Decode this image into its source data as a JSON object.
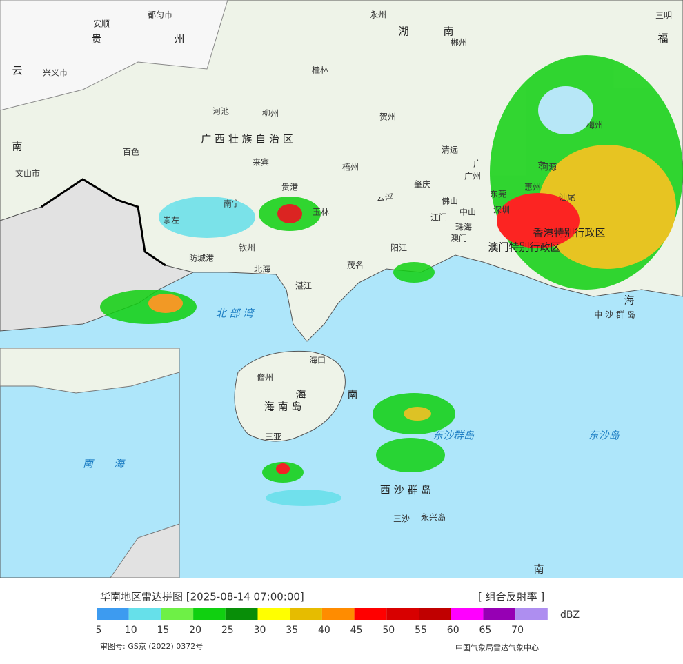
{
  "header": {
    "title": "华南地区雷达拼图 [2025-08-14 07:00:00]",
    "product": "[ 组合反射率 ]"
  },
  "legend": {
    "unit": "dBZ",
    "colors": [
      "#3d9bf0",
      "#66e0ea",
      "#6ef046",
      "#10d010",
      "#088e08",
      "#ffff00",
      "#e6bc00",
      "#ff8c00",
      "#ff0000",
      "#d80000",
      "#c00000",
      "#ff00ff",
      "#9600b4",
      "#ae8ef0"
    ],
    "ticks": [
      5,
      10,
      15,
      20,
      25,
      30,
      35,
      40,
      45,
      50,
      55,
      60,
      65,
      70
    ]
  },
  "map": {
    "labels": [
      "贵",
      "州",
      "安顺",
      "都匀市",
      "云",
      "兴义市",
      "南",
      "文山市",
      "湖",
      "南",
      "永州",
      "郴州",
      "桂林",
      "河池",
      "柳州",
      "百色",
      "广 西 壮 族 自 治 区",
      "来宾",
      "梧州",
      "贺州",
      "贵港",
      "南宁",
      "玉林",
      "崇左",
      "钦州",
      "防城港",
      "北海",
      "湛江",
      "茂名",
      "阳江",
      "云浮",
      "肇庆",
      "清远",
      "广州",
      "佛山",
      "东莞",
      "江门",
      "中山",
      "珠海",
      "深圳",
      "澳门",
      "香港特别行政区",
      "澳门特别行政区",
      "惠州",
      "河源",
      "梅州",
      "汕尾",
      "三明",
      "福",
      "广",
      "东",
      "北 部 湾",
      "海口",
      "儋州",
      "海 南 岛",
      "海",
      "南",
      "三亚",
      "西 沙 群 岛",
      "三沙",
      "永兴岛",
      "南",
      "海",
      "中 沙 群 岛",
      "东沙群岛",
      "东沙岛"
    ],
    "inset": [
      "南",
      "海"
    ]
  },
  "footer": {
    "approval": "审图号: GS京 (2022) 0372号",
    "agency": "中国气象局雷达气象中心"
  }
}
